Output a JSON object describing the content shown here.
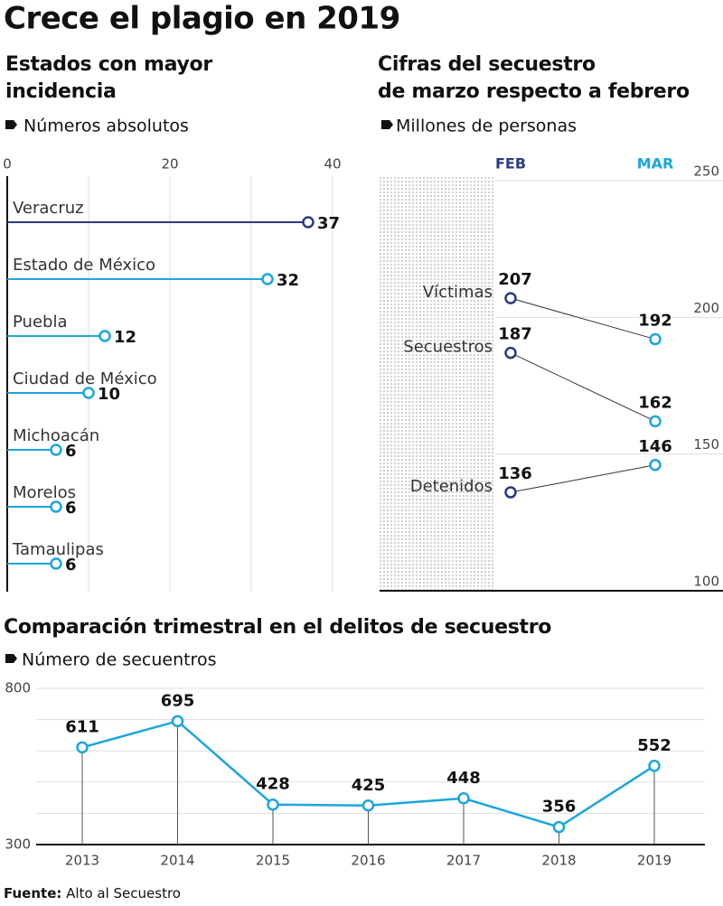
{
  "title": "Crece el plagio en 2019",
  "source_label": "Fuente:",
  "source": "Alto al Secuestro",
  "chart_data": [
    {
      "type": "lollipop",
      "title": [
        "Estados con mayor",
        "incidencia"
      ],
      "subtitle": "Números absolutos",
      "categories": [
        "Veracruz",
        "Estado de México",
        "Puebla",
        "Ciudad de México",
        "Michoacán",
        "Morelos",
        "Tamaulipas"
      ],
      "values": [
        37,
        32,
        12,
        10,
        6,
        6,
        6
      ],
      "colors": [
        "#2b3b80",
        "#1ba6da",
        "#1ba6da",
        "#1ba6da",
        "#1ba6da",
        "#1ba6da",
        "#1ba6da"
      ],
      "xlim": [
        0,
        40
      ],
      "xticks": [
        0,
        20,
        40
      ],
      "minor_xticks": [
        10,
        30
      ],
      "grid": true
    },
    {
      "type": "slope",
      "title": [
        "Cifras del secuestro",
        "de marzo respecto a febrero"
      ],
      "subtitle": "Millones de personas",
      "categories": [
        "FEB",
        "MAR"
      ],
      "colors": [
        "#2b3b80",
        "#1ba6da"
      ],
      "series": [
        {
          "name": "Víctimas",
          "values": [
            207,
            192
          ]
        },
        {
          "name": "Secuestros",
          "values": [
            187,
            162
          ]
        },
        {
          "name": "Detenidos",
          "values": [
            136,
            146
          ]
        }
      ],
      "ylim": [
        100,
        250
      ],
      "yticks": [
        100,
        150,
        200,
        250
      ],
      "grid": true
    },
    {
      "type": "line",
      "title": "Comparación trimestral en el delitos de secuestro",
      "subtitle": "Número de secuentros",
      "categories": [
        "2013",
        "2014",
        "2015",
        "2016",
        "2017",
        "2018",
        "2019"
      ],
      "values": [
        611,
        695,
        428,
        425,
        448,
        356,
        552
      ],
      "color": "#1ba6da",
      "ylim": [
        300,
        800
      ],
      "yticks": [
        300,
        800
      ],
      "minor_yticks": [
        400,
        500,
        600,
        700
      ],
      "grid": true
    }
  ]
}
